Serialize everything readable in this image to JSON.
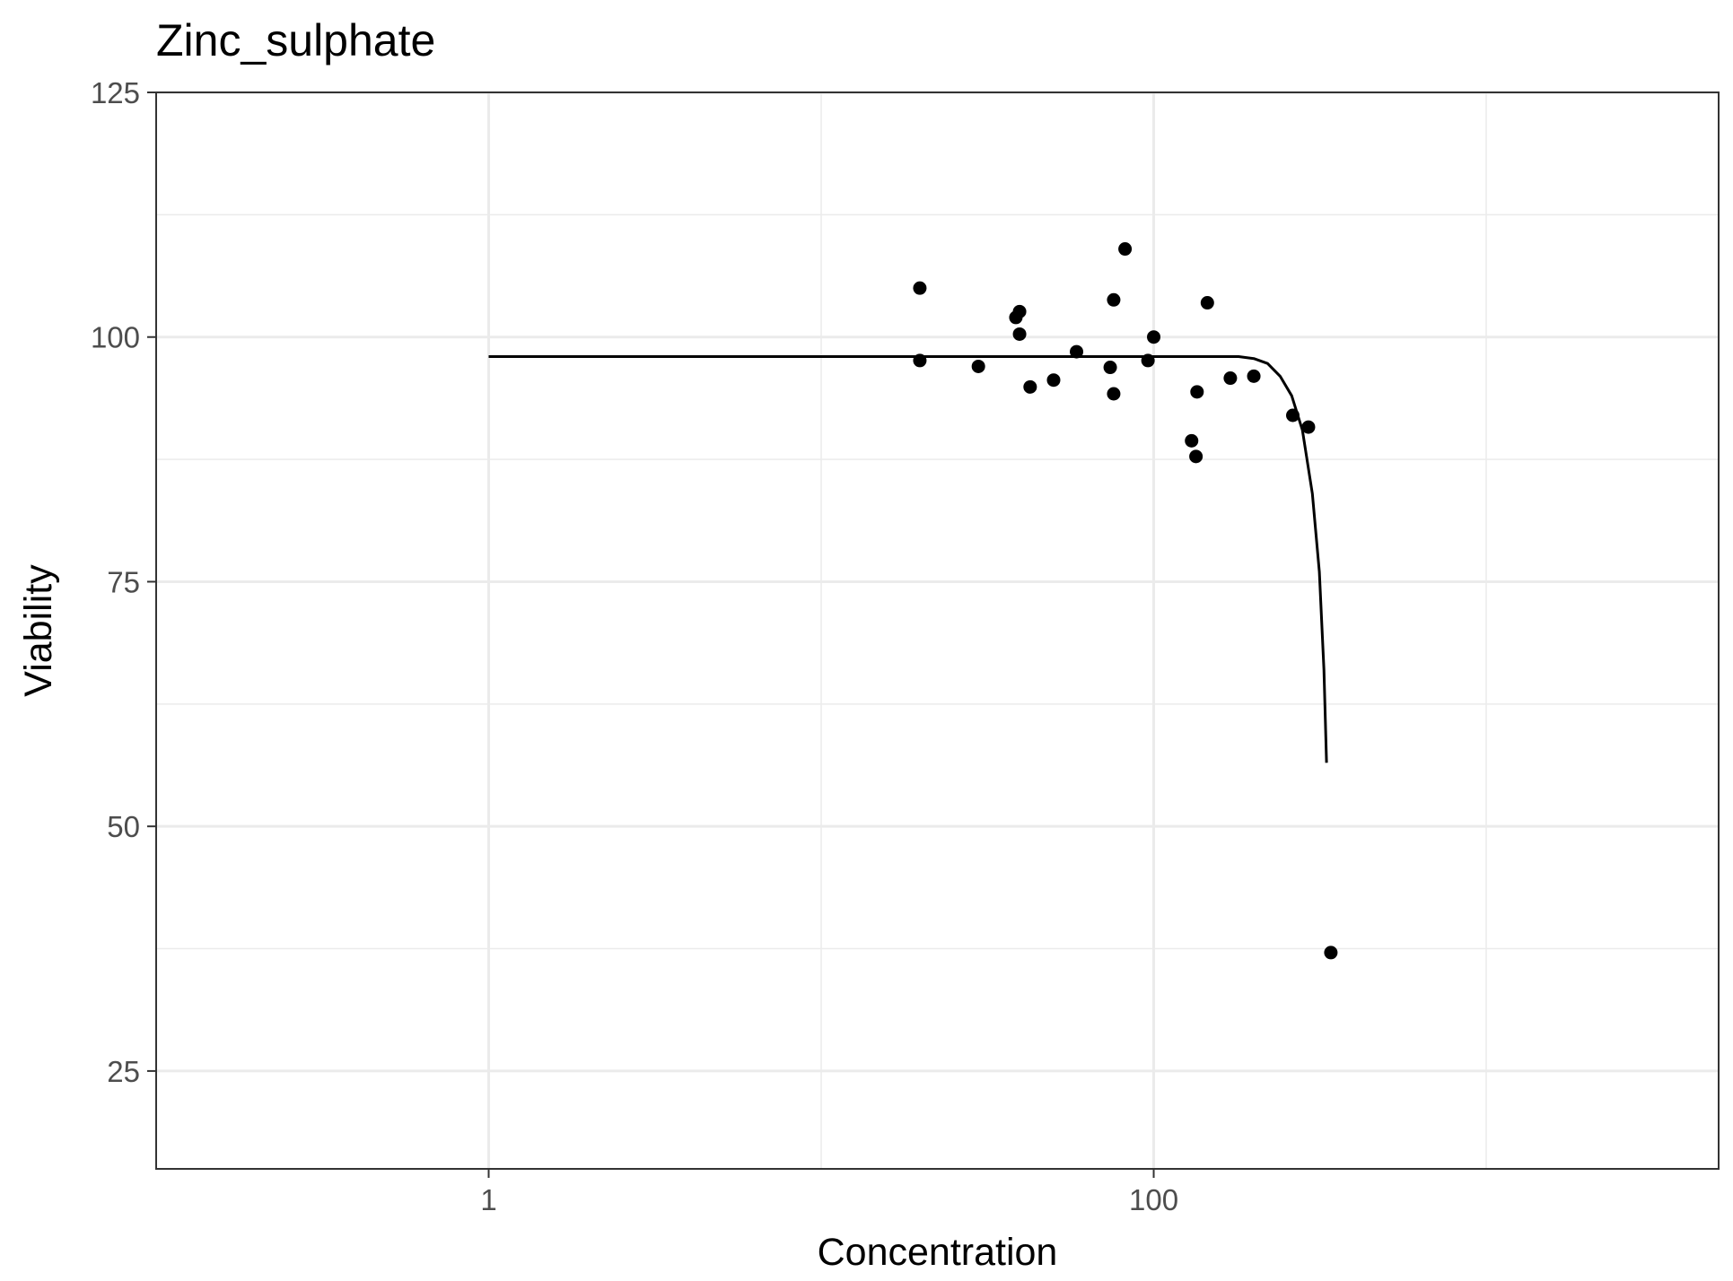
{
  "chart_data": {
    "type": "scatter",
    "title": "Zinc_sulphate",
    "xlabel": "Concentration",
    "ylabel": "Viability",
    "x_scale": "log10",
    "xlim": [
      0.1,
      5000
    ],
    "ylim": [
      15,
      125
    ],
    "x_ticks": [
      1,
      100
    ],
    "x_tick_labels": [
      "1",
      "100"
    ],
    "x_minor_ticks": [
      0.1,
      10,
      1000
    ],
    "y_ticks": [
      25,
      50,
      75,
      100,
      125
    ],
    "y_tick_labels": [
      "25",
      "50",
      "75",
      "100",
      "125"
    ],
    "y_minor_ticks": [
      37.5,
      62.5,
      87.5,
      112.5
    ],
    "grid": true,
    "legend": "none",
    "colors": {
      "points": "#000000",
      "curve": "#000000",
      "grid": "#ebebeb",
      "panel_border": "#333333"
    },
    "series": [
      {
        "type": "scatter",
        "points": [
          {
            "x": 19.8,
            "y": 105.0
          },
          {
            "x": 19.8,
            "y": 97.6
          },
          {
            "x": 29.7,
            "y": 97.0
          },
          {
            "x": 38.5,
            "y": 102.0
          },
          {
            "x": 39.5,
            "y": 102.6
          },
          {
            "x": 39.5,
            "y": 100.3
          },
          {
            "x": 42.5,
            "y": 94.9
          },
          {
            "x": 50.0,
            "y": 95.6
          },
          {
            "x": 58.6,
            "y": 98.5
          },
          {
            "x": 74.0,
            "y": 96.9
          },
          {
            "x": 75.8,
            "y": 103.8
          },
          {
            "x": 75.8,
            "y": 94.2
          },
          {
            "x": 82.0,
            "y": 109.0
          },
          {
            "x": 96.1,
            "y": 97.6
          },
          {
            "x": 100.0,
            "y": 100.0
          },
          {
            "x": 130.0,
            "y": 89.4
          },
          {
            "x": 134.0,
            "y": 87.8
          },
          {
            "x": 135.0,
            "y": 94.4
          },
          {
            "x": 145.0,
            "y": 103.5
          },
          {
            "x": 170.0,
            "y": 95.8
          },
          {
            "x": 200.0,
            "y": 96.0
          },
          {
            "x": 262.0,
            "y": 92.0
          },
          {
            "x": 292.0,
            "y": 90.8
          },
          {
            "x": 341.0,
            "y": 37.1
          }
        ]
      },
      {
        "type": "line",
        "points": [
          {
            "x": 1,
            "y": 98.0
          },
          {
            "x": 50,
            "y": 98.0
          },
          {
            "x": 150,
            "y": 98.0
          },
          {
            "x": 180,
            "y": 98.0
          },
          {
            "x": 200,
            "y": 97.8
          },
          {
            "x": 220,
            "y": 97.3
          },
          {
            "x": 240,
            "y": 96.0
          },
          {
            "x": 260,
            "y": 94.0
          },
          {
            "x": 280,
            "y": 90.5
          },
          {
            "x": 300,
            "y": 84.0
          },
          {
            "x": 315,
            "y": 76.0
          },
          {
            "x": 325,
            "y": 66.0
          },
          {
            "x": 331,
            "y": 56.5
          }
        ]
      }
    ]
  }
}
